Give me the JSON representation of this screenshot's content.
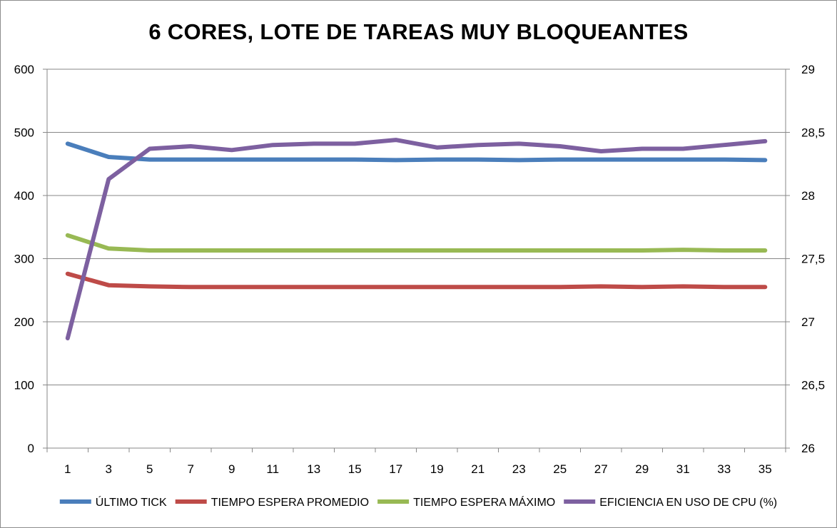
{
  "chart_data": {
    "type": "line",
    "title": "6 CORES, LOTE DE TAREAS MUY BLOQUEANTES",
    "x": [
      1,
      3,
      5,
      7,
      9,
      11,
      13,
      15,
      17,
      19,
      21,
      23,
      25,
      27,
      29,
      31,
      33,
      35
    ],
    "y_left": {
      "ylim": [
        0,
        600
      ],
      "ticks": [
        "0",
        "100",
        "200",
        "300",
        "400",
        "500",
        "600"
      ],
      "tick_values": [
        0,
        100,
        200,
        300,
        400,
        500,
        600
      ]
    },
    "y_right": {
      "ylim": [
        26,
        29
      ],
      "ticks": [
        "26",
        "26,5",
        "27",
        "27,5",
        "28",
        "28,5",
        "29"
      ],
      "tick_values": [
        26,
        26.5,
        27,
        27.5,
        28,
        28.5,
        29
      ]
    },
    "grid": "horizontal",
    "legend_position": "bottom",
    "series": [
      {
        "name": "ÚLTIMO TICK",
        "axis": "left",
        "color": "#4a7ebb",
        "values": [
          482,
          461,
          457,
          457,
          457,
          457,
          457,
          457,
          456,
          457,
          457,
          456,
          457,
          457,
          457,
          457,
          457,
          456
        ]
      },
      {
        "name": "TIEMPO ESPERA PROMEDIO",
        "axis": "left",
        "color": "#be4b48",
        "values": [
          276,
          258,
          256,
          255,
          255,
          255,
          255,
          255,
          255,
          255,
          255,
          255,
          255,
          256,
          255,
          256,
          255,
          255
        ]
      },
      {
        "name": "TIEMPO ESPERA MÁXIMO",
        "axis": "left",
        "color": "#98b954",
        "values": [
          337,
          316,
          313,
          313,
          313,
          313,
          313,
          313,
          313,
          313,
          313,
          313,
          313,
          313,
          313,
          314,
          313,
          313
        ]
      },
      {
        "name": "EFICIENCIA EN USO DE CPU (%)",
        "axis": "right",
        "color": "#7d60a0",
        "values": [
          26.87,
          28.13,
          28.37,
          28.39,
          28.36,
          28.4,
          28.41,
          28.41,
          28.44,
          28.38,
          28.4,
          28.41,
          28.39,
          28.35,
          28.37,
          28.37,
          28.4,
          28.43
        ]
      }
    ]
  }
}
